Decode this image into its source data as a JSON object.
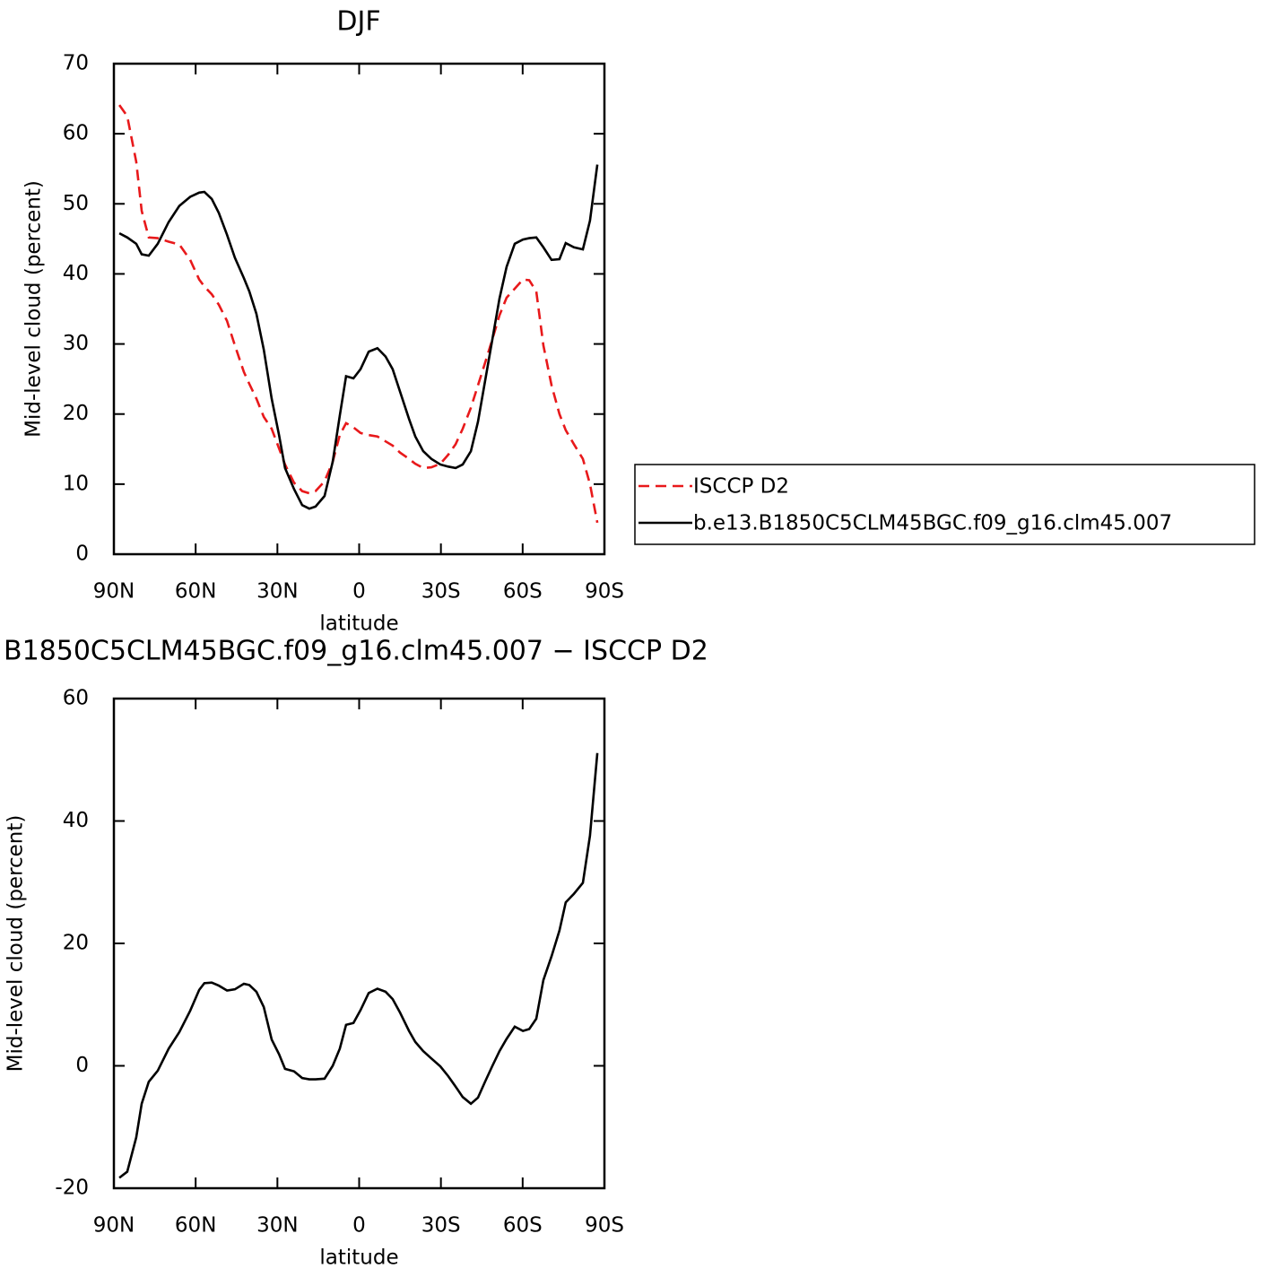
{
  "chart_data": [
    {
      "type": "line",
      "title": "DJF",
      "xlabel": "latitude",
      "ylabel": "Mid-level cloud (percent)",
      "x": [
        88.0,
        85.1,
        81.8,
        79.8,
        77.2,
        73.9,
        69.9,
        66.0,
        62.0,
        58.7,
        56.8,
        54.1,
        51.5,
        48.5,
        45.6,
        42.3,
        40.3,
        37.7,
        35.0,
        32.1,
        29.4,
        27.2,
        23.9,
        20.9,
        18.3,
        16.0,
        12.7,
        9.7,
        7.1,
        4.8,
        2.1,
        -0.5,
        -3.5,
        -6.7,
        -9.7,
        -12.3,
        -15.0,
        -18.3,
        -20.6,
        -23.5,
        -26.5,
        -29.8,
        -32.7,
        -35.4,
        -38.0,
        -41.0,
        -43.6,
        -46.2,
        -48.9,
        -51.5,
        -54.1,
        -57.1,
        -60.1,
        -62.4,
        -65.0,
        -67.6,
        -70.6,
        -73.5,
        -75.8,
        -78.8,
        -82.1,
        -84.7,
        -87.4
      ],
      "series": [
        {
          "name": "ISCCP D2",
          "color": "#e8191b",
          "style": "dashed",
          "values": [
            64.1,
            62.5,
            56,
            49,
            45.2,
            45.1,
            44.6,
            44.2,
            42,
            39.2,
            38.2,
            37.1,
            35.6,
            33.3,
            29.8,
            26,
            24.3,
            22.2,
            19.6,
            17.9,
            15.1,
            12.8,
            10.2,
            9,
            8.7,
            9,
            10.4,
            13.2,
            17,
            18.7,
            18.1,
            17.3,
            17,
            16.8,
            16.1,
            15.5,
            14.5,
            13.6,
            12.9,
            12.3,
            12.4,
            12.9,
            14.2,
            15.7,
            17.9,
            20.9,
            24.1,
            27.3,
            30.7,
            34.1,
            36.6,
            37.9,
            39.2,
            39.1,
            37.5,
            29.8,
            24.1,
            20,
            17.7,
            15.7,
            13.6,
            10,
            4.5
          ]
        },
        {
          "name": "b.e13.B1850C5CLM45BGC.f09_g16.clm45.007",
          "color": "#000000",
          "style": "solid",
          "values": [
            45.8,
            45.2,
            44.3,
            42.8,
            42.6,
            44.3,
            47.4,
            49.7,
            51.0,
            51.6,
            51.7,
            50.7,
            48.7,
            45.6,
            42.3,
            39.4,
            37.5,
            34.3,
            29.2,
            22.2,
            17.0,
            12.3,
            9.3,
            7.0,
            6.5,
            6.8,
            8.3,
            13.2,
            19.8,
            25.4,
            25.1,
            26.4,
            28.9,
            29.4,
            28.2,
            26.4,
            23.2,
            19.3,
            16.8,
            14.7,
            13.6,
            12.8,
            12.5,
            12.3,
            12.8,
            14.7,
            18.9,
            24.7,
            30.7,
            36.5,
            41.0,
            44.3,
            44.9,
            45.1,
            45.2,
            43.8,
            42.0,
            42.1,
            44.4,
            43.8,
            43.5,
            47.6,
            55.6
          ]
        }
      ],
      "xlim": [
        90,
        -90
      ],
      "xticks": [
        {
          "value": 90,
          "label": "90N"
        },
        {
          "value": 60,
          "label": "60N"
        },
        {
          "value": 30,
          "label": "30N"
        },
        0,
        {
          "value": -30,
          "label": "30S"
        },
        {
          "value": -60,
          "label": "60S"
        },
        {
          "value": -90,
          "label": "90S"
        }
      ],
      "ylim": [
        0,
        70
      ],
      "yticks": [
        0,
        10,
        20,
        30,
        40,
        50,
        60,
        70
      ],
      "legend": "right"
    },
    {
      "type": "line",
      "title": "B1850C5CLM45BGC.f09_g16.clm45.007 − ISCCP D2",
      "xlabel": "latitude",
      "ylabel": "Mid-level cloud (percent)",
      "x": [
        88.0,
        85.1,
        81.8,
        79.8,
        77.2,
        73.9,
        69.9,
        66.0,
        62.0,
        58.7,
        56.8,
        54.1,
        51.5,
        48.5,
        45.6,
        42.3,
        40.3,
        37.7,
        35.0,
        32.1,
        29.4,
        27.2,
        23.9,
        20.9,
        18.3,
        16.0,
        12.7,
        9.7,
        7.1,
        4.8,
        2.1,
        -0.5,
        -3.5,
        -6.7,
        -9.7,
        -12.3,
        -15.0,
        -18.3,
        -20.6,
        -23.5,
        -26.5,
        -29.8,
        -32.7,
        -35.4,
        -38.0,
        -41.0,
        -43.6,
        -46.2,
        -48.9,
        -51.5,
        -54.1,
        -57.1,
        -60.1,
        -62.4,
        -65.0,
        -67.6,
        -70.6,
        -73.5,
        -75.8,
        -78.8,
        -82.1,
        -84.7,
        -87.4
      ],
      "color": "#000000",
      "values": [
        -18.3,
        -17.3,
        -11.7,
        -6.2,
        -2.6,
        -0.8,
        2.8,
        5.5,
        9.0,
        12.4,
        13.5,
        13.6,
        13.1,
        12.3,
        12.5,
        13.4,
        13.2,
        12.1,
        9.6,
        4.3,
        1.9,
        -0.5,
        -0.9,
        -2.0,
        -2.2,
        -2.2,
        -2.1,
        0,
        2.8,
        6.7,
        7.0,
        9.1,
        11.9,
        12.6,
        12.1,
        10.9,
        8.7,
        5.7,
        3.9,
        2.4,
        1.2,
        -0.1,
        -1.7,
        -3.4,
        -5.1,
        -6.2,
        -5.2,
        -2.6,
        0,
        2.4,
        4.4,
        6.4,
        5.7,
        6.0,
        7.7,
        14.0,
        17.9,
        22.1,
        26.7,
        28.1,
        29.9,
        37.6,
        51.1
      ],
      "xlim": [
        90,
        -90
      ],
      "xticks": [
        {
          "value": 90,
          "label": "90N"
        },
        {
          "value": 60,
          "label": "60N"
        },
        {
          "value": 30,
          "label": "30N"
        },
        0,
        {
          "value": -30,
          "label": "30S"
        },
        {
          "value": -60,
          "label": "60S"
        },
        {
          "value": -90,
          "label": "90S"
        }
      ],
      "ylim": [
        -20,
        60
      ],
      "yticks": [
        -20,
        0,
        20,
        40,
        60
      ]
    }
  ]
}
